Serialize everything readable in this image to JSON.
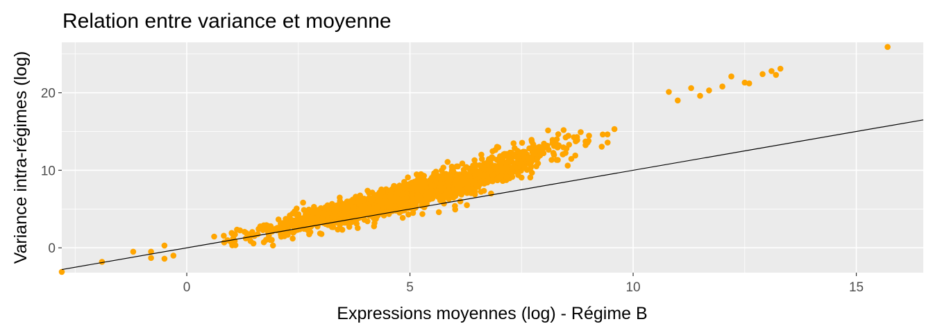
{
  "chart_data": {
    "type": "scatter",
    "title": "Relation entre variance et moyenne",
    "xlabel": "Expressions moyennes (log) - Régime B",
    "ylabel": "Variance intra-régimes (log)",
    "xlim": [
      -2.8,
      16.5
    ],
    "ylim": [
      -3.2,
      26.5
    ],
    "x_ticks": [
      0,
      5,
      10,
      15
    ],
    "x_tick_labels": [
      "0",
      "5",
      "10",
      "15"
    ],
    "y_ticks": [
      0,
      10,
      20
    ],
    "y_tick_labels": [
      "0",
      "10",
      "20"
    ],
    "grid": true,
    "legend": "none",
    "point_color": "#FFA500",
    "line_color": "#000000",
    "panel_color": "#EBEBEB",
    "grid_color": "#FFFFFF",
    "reference_line": {
      "slope": 1,
      "intercept": 0
    },
    "main_cloud": {
      "description_free": true,
      "x_range": [
        -0.5,
        10.6
      ],
      "center_line": [
        [
          -0.5,
          -0.6
        ],
        [
          0,
          0
        ],
        [
          2,
          2.4
        ],
        [
          4,
          5.1
        ],
        [
          6,
          8.3
        ],
        [
          8,
          12.3
        ],
        [
          10,
          16.2
        ],
        [
          10.6,
          17.2
        ]
      ],
      "spread_sd": 1.0,
      "n_points": 1800
    },
    "sparse_points": [
      {
        "x": -2.8,
        "y": -3.1
      },
      {
        "x": -1.9,
        "y": -1.8
      },
      {
        "x": -1.2,
        "y": -0.5
      },
      {
        "x": -0.8,
        "y": -1.3
      },
      {
        "x": -0.8,
        "y": -0.5
      },
      {
        "x": -0.5,
        "y": -1.4
      },
      {
        "x": -0.5,
        "y": 0.3
      },
      {
        "x": -0.3,
        "y": -1.0
      },
      {
        "x": 10.8,
        "y": 20.1
      },
      {
        "x": 11.0,
        "y": 19.0
      },
      {
        "x": 11.3,
        "y": 20.6
      },
      {
        "x": 11.5,
        "y": 19.6
      },
      {
        "x": 11.7,
        "y": 20.3
      },
      {
        "x": 12.0,
        "y": 20.8
      },
      {
        "x": 12.2,
        "y": 22.1
      },
      {
        "x": 12.5,
        "y": 21.3
      },
      {
        "x": 12.6,
        "y": 21.2
      },
      {
        "x": 12.9,
        "y": 22.4
      },
      {
        "x": 13.1,
        "y": 22.8
      },
      {
        "x": 13.3,
        "y": 23.1
      },
      {
        "x": 13.2,
        "y": 22.3
      },
      {
        "x": 15.7,
        "y": 25.9
      }
    ]
  }
}
